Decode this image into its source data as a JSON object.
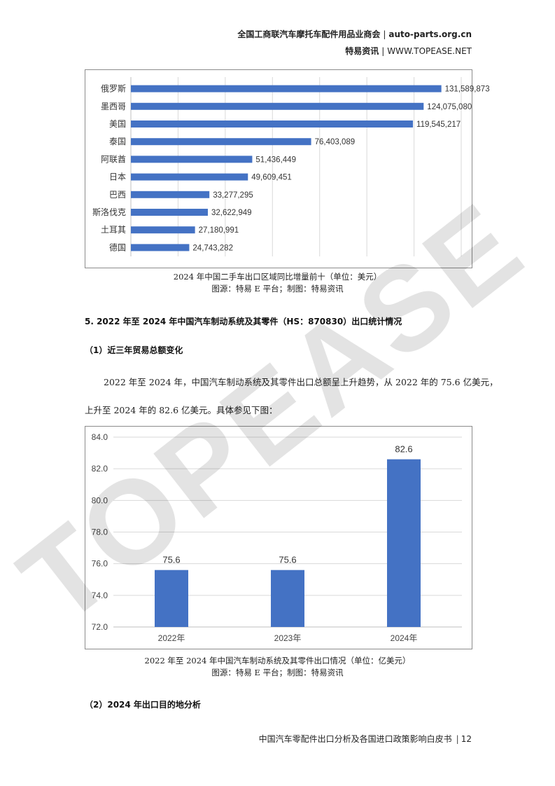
{
  "header": {
    "org": "全国工商联汽车摩托车配件用品业商会",
    "org_site": "auto-parts.org.cn",
    "brand": "特易资讯",
    "brand_site": "WWW.TOPEASE.NET",
    "separator": "|"
  },
  "watermark": "TOPEASE",
  "figure1": {
    "caption_line1": "2024 年中国二手车出口区域同比增量前十（单位：美元）",
    "caption_line2": "图源：特易 E 平台；制图：特易资讯"
  },
  "section5": {
    "heading": "5. 2022 年至 2024 年中国汽车制动系统及其零件（HS：870830）出口统计情况",
    "sub1": "（1）近三年贸易总额变化",
    "para_line1": "2022 年至 2024 年，中国汽车制动系统及其零件出口总额呈上升趋势，从 2022 年的 75.6 亿美元，",
    "para_line2": "上升至 2024 年的 82.6 亿美元。具体参见下图：",
    "sub2": "（2）2024 年出口目的地分析"
  },
  "figure2": {
    "caption_line1": "2022 年至 2024 年中国汽车制动系统及其零件出口情况（单位：亿美元）",
    "caption_line2": "图源：特易 E 平台；制图：特易资讯"
  },
  "footer": {
    "title": "中国汽车零配件出口分析及各国进口政策影响白皮书",
    "page": "12"
  },
  "colors": {
    "bar": "#4472c4",
    "grid": "#d9d9d9",
    "axis": "#bfbfbf",
    "border": "#8c8c8c"
  },
  "chart_data": [
    {
      "type": "bar",
      "orientation": "horizontal",
      "categories": [
        "俄罗斯",
        "墨西哥",
        "美国",
        "泰国",
        "阿联酋",
        "日本",
        "巴西",
        "斯洛伐克",
        "土耳其",
        "德国"
      ],
      "values": [
        131589873,
        124075080,
        119545217,
        76403089,
        51436449,
        49609451,
        33277295,
        32622949,
        27180991,
        24743282
      ],
      "value_labels": [
        "131,589,873",
        "124,075,080",
        "119,545,217",
        "76,403,089",
        "51,436,449",
        "49,609,451",
        "33,277,295",
        "32,622,949",
        "27,180,991",
        "24,743,282"
      ],
      "xlim": [
        0,
        140000000
      ],
      "grid": true,
      "legend": "none"
    },
    {
      "type": "bar",
      "categories": [
        "2022年",
        "2023年",
        "2024年"
      ],
      "values": [
        75.6,
        75.6,
        82.6
      ],
      "value_labels": [
        "75.6",
        "75.6",
        "82.6"
      ],
      "y_ticks": [
        "72.0",
        "74.0",
        "76.0",
        "78.0",
        "80.0",
        "82.0",
        "84.0"
      ],
      "ylim": [
        72,
        84
      ],
      "grid": true,
      "legend": "none"
    }
  ]
}
